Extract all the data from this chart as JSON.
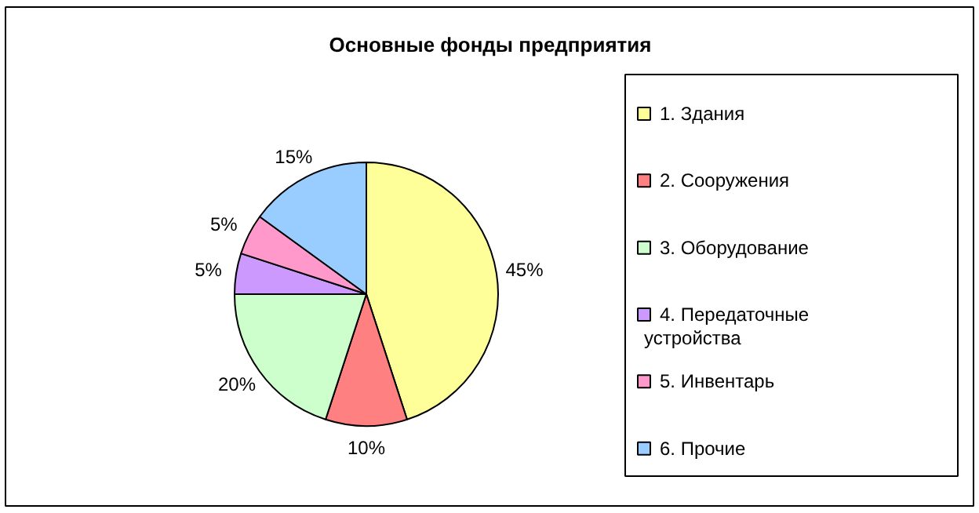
{
  "chart_data": {
    "type": "pie",
    "title": "Основные фонды предприятия",
    "categories": [
      "1. Здания",
      "2. Сооружения",
      "3. Оборудование",
      "4. Передаточные устройства",
      "5. Инвентарь",
      "6. Прочие"
    ],
    "values": [
      45,
      10,
      20,
      5,
      5,
      15
    ],
    "colors": [
      "#ffff99",
      "#ff8080",
      "#ccffcc",
      "#cc99ff",
      "#ff99cc",
      "#99ccff"
    ],
    "value_labels": [
      "45%",
      "10%",
      "20%",
      "5%",
      "5%",
      "15%"
    ],
    "legend": "right"
  }
}
